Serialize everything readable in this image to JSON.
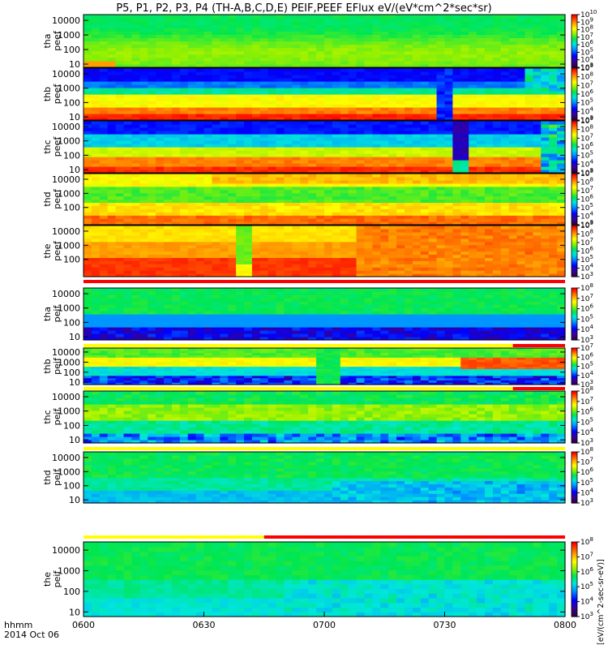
{
  "figure": {
    "title": "P5, P1, P2, P3, P4 (TH-A,B,C,D,E) PEIF,PEEF EFlux eV/(eV*cm^2*sec*sr)",
    "xaxis_label": "hhmm",
    "date_label": "2014 Oct 06",
    "colorbar_unit": "[eV/(cm^2-sec-sr-eV)]"
  },
  "chart_data": {
    "type": "heatmap",
    "x_ticks": [
      "0600",
      "0630",
      "0700",
      "0730",
      "0800"
    ],
    "x_range": [
      "0600",
      "0800"
    ],
    "yscale": "log",
    "colormap": "rainbow",
    "panels": [
      {
        "id": "tha-peef",
        "label": "tha\npeef",
        "yticks": [
          "10",
          "100",
          "1000",
          "10000"
        ],
        "cbar": {
          "min_exp": 3,
          "max_exp": 10,
          "labels": [
            "10^3",
            "10^4",
            "10^5",
            "10^6",
            "10^7",
            "10^8",
            "10^9",
            "10^10"
          ]
        }
      },
      {
        "id": "thb-peef",
        "label": "thb\npeef",
        "yticks": [
          "10",
          "100",
          "1000",
          "10000"
        ],
        "cbar": {
          "min_exp": 3,
          "max_exp": 9,
          "labels": [
            "10^3",
            "10^4",
            "10^5",
            "10^6",
            "10^7",
            "10^8",
            "10^9"
          ]
        }
      },
      {
        "id": "thc-peef",
        "label": "thc\npeef",
        "yticks": [
          "10",
          "100",
          "1000",
          "10000"
        ],
        "cbar": {
          "min_exp": 3,
          "max_exp": 9,
          "labels": [
            "10^3",
            "10^4",
            "10^5",
            "10^6",
            "10^7",
            "10^8",
            "10^9"
          ]
        }
      },
      {
        "id": "thd-peef",
        "label": "thd\npeef",
        "yticks": [
          "100",
          "1000",
          "10000"
        ],
        "cbar": {
          "min_exp": 3,
          "max_exp": 9,
          "labels": [
            "10^3",
            "10^4",
            "10^5",
            "10^6",
            "10^7",
            "10^8",
            "10^9"
          ]
        }
      },
      {
        "id": "the-peef",
        "label": "the\npeef",
        "yticks": [
          "100",
          "1000",
          "10000"
        ],
        "cbar": {
          "min_exp": 3,
          "max_exp": 9,
          "labels": [
            "10^3",
            "10^4",
            "10^5",
            "10^6",
            "10^7",
            "10^8",
            "10^9"
          ]
        }
      },
      {
        "id": "tha-peif",
        "label": "tha\npeif",
        "yticks": [
          "10",
          "100",
          "1000",
          "10000"
        ],
        "cbar": {
          "min_exp": 3,
          "max_exp": 8,
          "labels": [
            "10^3",
            "10^4",
            "10^5",
            "10^6",
            "10^7",
            "10^8"
          ]
        }
      },
      {
        "id": "thb-peif",
        "label": "thb\npeif",
        "yticks": [
          "10",
          "100",
          "1000",
          "10000"
        ],
        "cbar": {
          "min_exp": 3,
          "max_exp": 7,
          "labels": [
            "10^3",
            "10^4",
            "10^5",
            "10^6",
            "10^7"
          ]
        }
      },
      {
        "id": "thc-peif",
        "label": "thc\npeif",
        "yticks": [
          "10",
          "100",
          "1000",
          "10000"
        ],
        "cbar": {
          "min_exp": 3,
          "max_exp": 8,
          "labels": [
            "10^3",
            "10^4",
            "10^5",
            "10^6",
            "10^7",
            "10^8"
          ]
        }
      },
      {
        "id": "thd-peif",
        "label": "thd\npeif",
        "yticks": [
          "10",
          "100",
          "1000",
          "10000"
        ],
        "cbar": {
          "min_exp": 3,
          "max_exp": 8,
          "labels": [
            "10^3",
            "10^4",
            "10^5",
            "10^6",
            "10^7",
            "10^8"
          ]
        }
      },
      {
        "id": "the-peif",
        "label": "the\npeif",
        "yticks": [
          "10",
          "100",
          "1000",
          "10000"
        ],
        "cbar": {
          "min_exp": 3,
          "max_exp": 8,
          "labels": [
            "10^3",
            "10^4",
            "10^5",
            "10^6",
            "10^7",
            "10^8"
          ]
        }
      }
    ],
    "status_bars": [
      {
        "after_panel": "the-peef",
        "segments": [
          {
            "from": "0600",
            "to": "0800",
            "color": "#ff0000"
          }
        ]
      },
      {
        "after_panel": "tha-peif",
        "segments": [
          {
            "from": "0600",
            "to": "0747",
            "color": "#ffff00"
          },
          {
            "from": "0747",
            "to": "0800",
            "color": "#ff0000"
          }
        ]
      },
      {
        "after_panel": "thb-peif",
        "segments": [
          {
            "from": "0600",
            "to": "0747",
            "color": "#ffff00"
          },
          {
            "from": "0747",
            "to": "0800",
            "color": "#ff0000"
          }
        ]
      },
      {
        "after_panel": "thc-peif",
        "segments": [
          {
            "from": "0600",
            "to": "0800",
            "color": "#ffff00"
          }
        ]
      },
      {
        "after_panel": "thd-peif",
        "segments": [
          {
            "from": "0600",
            "to": "0645",
            "color": "#ffff00"
          },
          {
            "from": "0645",
            "to": "0800",
            "color": "#ff0000"
          }
        ]
      }
    ]
  }
}
